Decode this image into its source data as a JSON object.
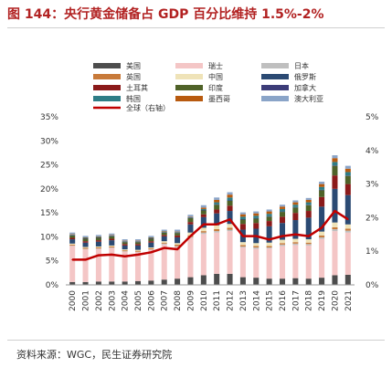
{
  "header": {
    "title": "图 144：央行黄金储备占 GDP 百分比维持 1.5%-2%"
  },
  "footer": {
    "source": "资料来源：WGC，民生证券研究院"
  },
  "chart_data": {
    "type": "bar",
    "stacked": true,
    "categories": [
      "2000",
      "2001",
      "2002",
      "2003",
      "2004",
      "2005",
      "2006",
      "2007",
      "2008",
      "2009",
      "2010",
      "2011",
      "2012",
      "2013",
      "2014",
      "2015",
      "2016",
      "2017",
      "2018",
      "2019",
      "2020",
      "2021"
    ],
    "ylim": [
      0,
      35
    ],
    "yticks": [
      "0%",
      "5%",
      "10%",
      "15%",
      "20%",
      "25%",
      "30%",
      "35%"
    ],
    "y2lim": [
      0,
      5
    ],
    "y2ticks": [
      "0%",
      "1%",
      "2%",
      "3%",
      "4%",
      "5%"
    ],
    "legend_placement": "top",
    "series": [
      {
        "name": "美国",
        "color": "#4d4d4d",
        "values": [
          0.6,
          0.6,
          0.7,
          0.7,
          0.7,
          0.8,
          0.9,
          1.1,
          1.3,
          1.6,
          2.0,
          2.3,
          2.3,
          1.6,
          1.5,
          1.3,
          1.3,
          1.4,
          1.3,
          1.5,
          2.0,
          2.1
        ]
      },
      {
        "name": "瑞士",
        "color": "#f4c6c6",
        "values": [
          7.5,
          6.8,
          6.8,
          7.0,
          6.2,
          6.0,
          6.4,
          7.3,
          6.6,
          8.2,
          8.6,
          8.6,
          8.9,
          6.2,
          6.0,
          6.3,
          6.8,
          6.9,
          6.9,
          8.1,
          9.2,
          8.8
        ]
      },
      {
        "name": "日本",
        "color": "#bfbfbf",
        "values": [
          0.1,
          0.1,
          0.1,
          0.1,
          0.1,
          0.1,
          0.1,
          0.2,
          0.2,
          0.2,
          0.3,
          0.3,
          0.3,
          0.2,
          0.3,
          0.2,
          0.3,
          0.3,
          0.3,
          0.3,
          0.4,
          0.4
        ]
      },
      {
        "name": "英国",
        "color": "#c87a3a",
        "values": [
          0.2,
          0.2,
          0.2,
          0.2,
          0.2,
          0.2,
          0.2,
          0.2,
          0.3,
          0.3,
          0.3,
          0.4,
          0.4,
          0.3,
          0.3,
          0.3,
          0.3,
          0.3,
          0.3,
          0.4,
          0.4,
          0.4
        ]
      },
      {
        "name": "中国",
        "color": "#efe3b8",
        "values": [
          0.2,
          0.2,
          0.2,
          0.2,
          0.2,
          0.2,
          0.2,
          0.3,
          0.3,
          0.6,
          0.7,
          0.8,
          0.8,
          0.6,
          0.6,
          0.7,
          0.7,
          0.7,
          0.7,
          0.8,
          1.0,
          0.9
        ]
      },
      {
        "name": "俄罗斯",
        "color": "#2b4a73",
        "values": [
          0.9,
          0.9,
          1.0,
          1.1,
          0.8,
          0.9,
          1.0,
          1.0,
          1.2,
          1.7,
          2.2,
          2.5,
          2.7,
          2.6,
          3.0,
          3.4,
          3.5,
          3.9,
          4.5,
          5.2,
          7.0,
          6.1
        ]
      },
      {
        "name": "土耳其",
        "color": "#8b1a1a",
        "values": [
          0.3,
          0.3,
          0.3,
          0.3,
          0.3,
          0.3,
          0.3,
          0.3,
          0.4,
          0.5,
          0.6,
          0.8,
          1.1,
          1.2,
          1.2,
          1.1,
          1.3,
          1.5,
          1.4,
          2.0,
          2.8,
          2.3
        ]
      },
      {
        "name": "印度",
        "color": "#4f6228",
        "values": [
          0.5,
          0.5,
          0.5,
          0.5,
          0.4,
          0.4,
          0.5,
          0.5,
          0.5,
          0.8,
          0.8,
          1.0,
          1.0,
          0.9,
          0.9,
          0.9,
          1.0,
          1.1,
          1.2,
          1.4,
          2.0,
          1.7
        ]
      },
      {
        "name": "加拿大",
        "color": "#3c3c78",
        "values": [
          0.1,
          0.1,
          0.1,
          0.1,
          0.1,
          0.1,
          0.1,
          0.1,
          0.1,
          0.1,
          0.1,
          0.1,
          0.1,
          0.1,
          0.1,
          0.1,
          0.1,
          0.1,
          0.1,
          0.1,
          0.1,
          0.1
        ]
      },
      {
        "name": "韩国",
        "color": "#2e7d86",
        "values": [
          0.1,
          0.1,
          0.1,
          0.1,
          0.1,
          0.1,
          0.1,
          0.1,
          0.1,
          0.1,
          0.2,
          0.4,
          0.6,
          0.5,
          0.5,
          0.5,
          0.5,
          0.5,
          0.5,
          0.6,
          0.7,
          0.7
        ]
      },
      {
        "name": "墨西哥",
        "color": "#b85a0f",
        "values": [
          0.1,
          0.1,
          0.1,
          0.1,
          0.1,
          0.1,
          0.1,
          0.1,
          0.1,
          0.1,
          0.3,
          0.5,
          0.6,
          0.5,
          0.5,
          0.5,
          0.5,
          0.5,
          0.5,
          0.6,
          0.8,
          0.7
        ]
      },
      {
        "name": "澳大利亚",
        "color": "#8aa4c8",
        "values": [
          0.3,
          0.3,
          0.3,
          0.3,
          0.3,
          0.3,
          0.3,
          0.3,
          0.4,
          0.4,
          0.5,
          0.5,
          0.5,
          0.4,
          0.4,
          0.4,
          0.4,
          0.4,
          0.4,
          0.5,
          0.6,
          0.6
        ]
      }
    ],
    "line": {
      "name": "全球（右轴）",
      "color": "#c00000",
      "axis": "right",
      "values": [
        0.75,
        0.75,
        0.88,
        0.9,
        0.85,
        0.9,
        0.97,
        1.1,
        1.06,
        1.45,
        1.8,
        1.8,
        1.95,
        1.45,
        1.45,
        1.35,
        1.45,
        1.5,
        1.45,
        1.7,
        2.2,
        1.95
      ]
    }
  }
}
